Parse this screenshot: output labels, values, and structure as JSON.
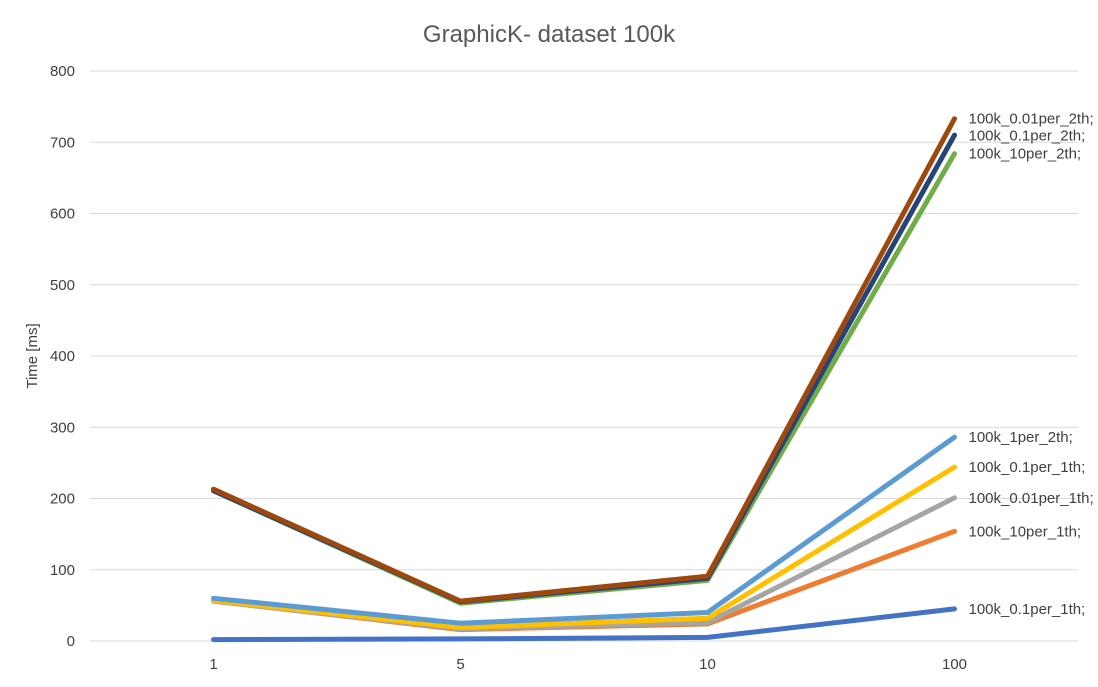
{
  "chart_data": {
    "type": "line",
    "title": "GraphicK- dataset 100k",
    "xlabel": "",
    "ylabel": "Time [ms]",
    "x": [
      "1",
      "5",
      "10",
      "100"
    ],
    "ylim": [
      0,
      800
    ],
    "yticks": [
      0,
      100,
      200,
      300,
      400,
      500,
      600,
      700,
      800
    ],
    "grid": true,
    "legend": "none",
    "series": [
      {
        "name": "100k_0.1per_1th;",
        "color": "#4472C4",
        "values": [
          2,
          3,
          5,
          45
        ]
      },
      {
        "name": "100k_10per_1th;",
        "color": "#ED7D31",
        "values": [
          56,
          16,
          24,
          154
        ]
      },
      {
        "name": "100k_0.01per_1th;",
        "color": "#A5A5A5",
        "values": [
          56,
          17,
          26,
          201
        ]
      },
      {
        "name": "100k_0.1per_1th;",
        "color": "#FFC000",
        "values": [
          57,
          19,
          32,
          244
        ]
      },
      {
        "name": "100k_1per_2th;",
        "color": "#5B9BD5",
        "values": [
          60,
          25,
          40,
          286
        ]
      },
      {
        "name": "100k_10per_2th;",
        "color": "#70AD47",
        "values": [
          211,
          53,
          85,
          684
        ]
      },
      {
        "name": "100k_0.1per_2th;",
        "color": "#264478",
        "values": [
          211,
          55,
          88,
          710
        ]
      },
      {
        "name": "100k_0.01per_2th;",
        "color": "#9E480E",
        "values": [
          213,
          56,
          91,
          733
        ]
      }
    ]
  }
}
